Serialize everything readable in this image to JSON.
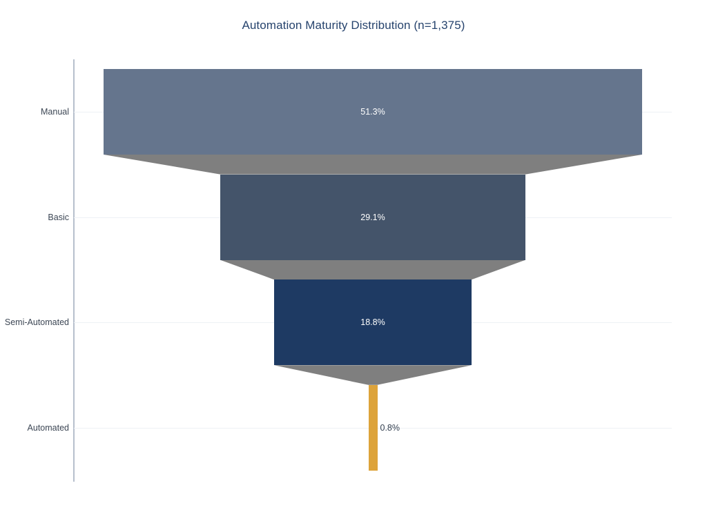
{
  "title": "Automation Maturity Distribution (n=1,375)",
  "colors": {
    "background": "#ffffff",
    "title_text": "#26436d",
    "axis_label_text": "#3c4654",
    "inside_label_text": "#ffffff",
    "outside_label_text": "#333f4f",
    "connector": "#7f7f7f",
    "gridline": "#edf1f5",
    "axis_line": "#b6bfcc"
  },
  "chart_data": {
    "type": "funnel",
    "title": "Automation Maturity Distribution (n=1,375)",
    "total_n": 1375,
    "categories": [
      "Manual",
      "Basic",
      "Semi-Automated",
      "Automated"
    ],
    "values": [
      51.3,
      29.1,
      18.8,
      0.8
    ],
    "value_labels": [
      "51.3%",
      "29.1%",
      "18.8%",
      "0.8%"
    ],
    "series_colors": [
      "#65758d",
      "#44546a",
      "#1e3a63",
      "#dda33a"
    ],
    "units": "percent",
    "grid": true,
    "legend": false,
    "label_position_note": "percent labels inside bands, except Automated which is outside right of its narrow bar",
    "category_axis": "left, horizontal band funnel centered on plot"
  }
}
